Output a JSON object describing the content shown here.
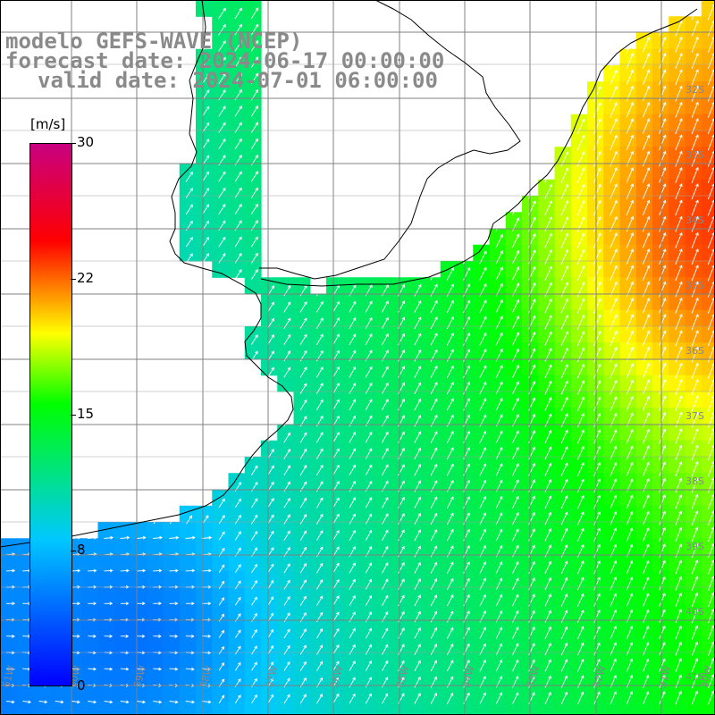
{
  "title": {
    "line1": "modelo GEFS-WAVE (NCEP)",
    "line2": "forecast date: 2024-06-17 00:00:00",
    "line3": "valid date: 2024-07-01 06:00:00"
  },
  "colorbar": {
    "unit": "[m/s]",
    "ticks": [
      "30",
      "22",
      "15",
      "8",
      "0"
    ],
    "colors": [
      "#0000ff",
      "#00c8ff",
      "#00ff00",
      "#ffff00",
      "#ff0000",
      "#c80080"
    ]
  },
  "axes": {
    "lat_labels": [
      "32S",
      "33S",
      "34S",
      "35S",
      "36S",
      "37S",
      "38S",
      "39S",
      "40S",
      "41S"
    ],
    "lon_labels": [
      "61W",
      "60W",
      "59W",
      "58W",
      "57W",
      "56W",
      "55W",
      "54W",
      "53W",
      "52W",
      "51W",
      "50W"
    ]
  },
  "colors": {
    "land": "#ffffff",
    "coast": "#000000",
    "grid": "#808080",
    "arrow": "#ffffff"
  }
}
